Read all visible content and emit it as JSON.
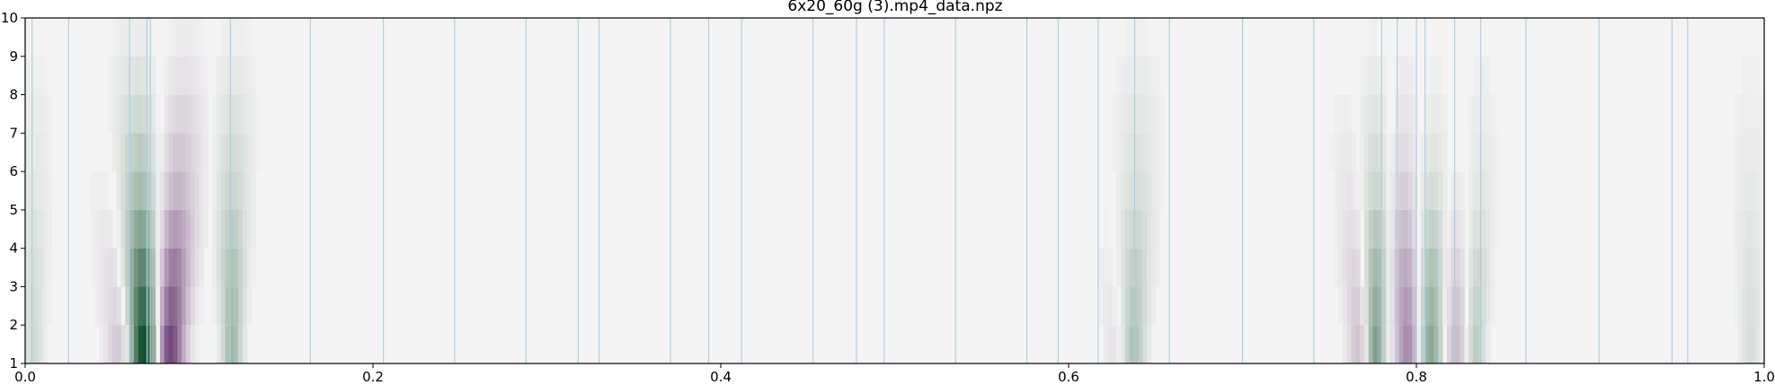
{
  "chart_data": {
    "type": "heatmap",
    "title": "6x20_60g (3).mp4_data.npz",
    "xlabel": "",
    "ylabel": "",
    "xlim": [
      0.0,
      1.0
    ],
    "ylim": [
      1,
      10
    ],
    "x_ticks": [
      0.0,
      0.2,
      0.4,
      0.6,
      0.8,
      1.0
    ],
    "x_tick_labels": [
      "0.0",
      "0.2",
      "0.4",
      "0.6",
      "0.8",
      "1.0"
    ],
    "y_ticks": [
      1,
      2,
      3,
      4,
      5,
      6,
      7,
      8,
      9,
      10
    ],
    "y_tick_labels": [
      "1",
      "2",
      "3",
      "4",
      "5",
      "6",
      "7",
      "8",
      "9",
      "10"
    ],
    "grid": false,
    "colormap": "PRGn",
    "colors": {
      "background": "#f4f4f4",
      "positive": "#00441b",
      "negative": "#40004b",
      "marker_line": "#a6cee3"
    },
    "components": [
      {
        "center": 0.068,
        "sign": 1,
        "amplitude": 1.0,
        "width": 0.006
      },
      {
        "center": 0.083,
        "sign": -1,
        "amplitude": 0.75,
        "width": 0.006
      },
      {
        "center": 0.056,
        "sign": -1,
        "amplitude": 0.25,
        "width": 0.006
      },
      {
        "center": 0.119,
        "sign": 1,
        "amplitude": 0.35,
        "width": 0.004
      },
      {
        "center": 0.005,
        "sign": 1,
        "amplitude": 0.15,
        "width": 0.004
      },
      {
        "center": 0.637,
        "sign": 1,
        "amplitude": 0.3,
        "width": 0.005
      },
      {
        "center": 0.628,
        "sign": -1,
        "amplitude": 0.1,
        "width": 0.005
      },
      {
        "center": 0.776,
        "sign": 1,
        "amplitude": 0.55,
        "width": 0.004
      },
      {
        "center": 0.768,
        "sign": -1,
        "amplitude": 0.25,
        "width": 0.005
      },
      {
        "center": 0.795,
        "sign": -1,
        "amplitude": 0.45,
        "width": 0.005
      },
      {
        "center": 0.808,
        "sign": 1,
        "amplitude": 0.45,
        "width": 0.005
      },
      {
        "center": 0.823,
        "sign": -1,
        "amplitude": 0.25,
        "width": 0.005
      },
      {
        "center": 0.834,
        "sign": 1,
        "amplitude": 0.25,
        "width": 0.004
      },
      {
        "center": 0.992,
        "sign": 1,
        "amplitude": 0.12,
        "width": 0.004
      }
    ],
    "row_weights": [
      1.0,
      0.9,
      0.8,
      0.65,
      0.5,
      0.4,
      0.3,
      0.2,
      0.1
    ],
    "vertical_markers": [
      0.004,
      0.025,
      0.06,
      0.07,
      0.072,
      0.118,
      0.164,
      0.206,
      0.247,
      0.288,
      0.318,
      0.33,
      0.371,
      0.393,
      0.412,
      0.453,
      0.478,
      0.494,
      0.535,
      0.576,
      0.594,
      0.617,
      0.638,
      0.658,
      0.7,
      0.741,
      0.78,
      0.789,
      0.8,
      0.805,
      0.822,
      0.837,
      0.863,
      0.905,
      0.947,
      0.956
    ]
  }
}
